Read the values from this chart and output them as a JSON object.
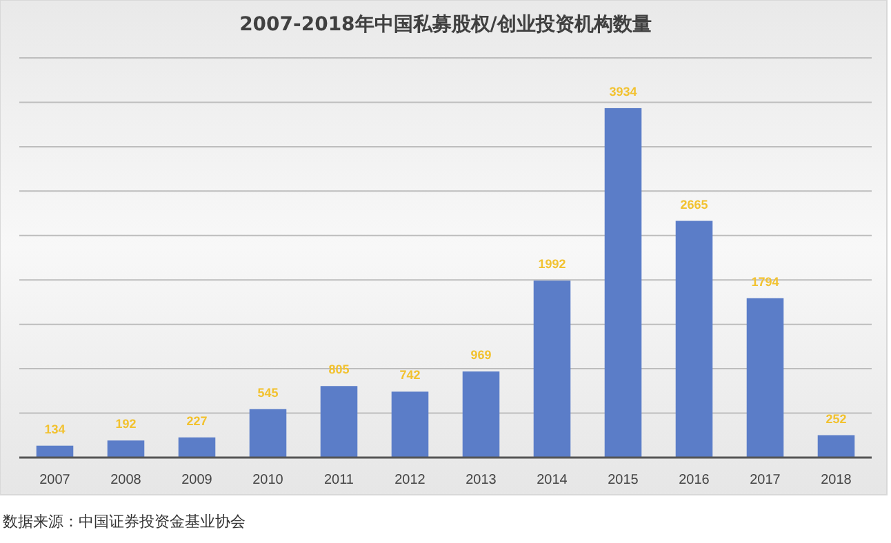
{
  "chart_data": {
    "type": "bar",
    "title": "2007-2018年中国私募股权/创业投资机构数量",
    "categories": [
      "2007",
      "2008",
      "2009",
      "2010",
      "2011",
      "2012",
      "2013",
      "2014",
      "2015",
      "2016",
      "2017",
      "2018"
    ],
    "values": [
      134,
      192,
      227,
      545,
      805,
      742,
      969,
      1992,
      3934,
      2665,
      1794,
      252
    ],
    "color": "#5b7dc8",
    "data_labels": true,
    "ylim": [
      0,
      4500
    ],
    "yticks": [
      {
        "value": 0,
        "label": null
      },
      {
        "value": 500,
        "label": null
      },
      {
        "value": 1000,
        "label": null
      },
      {
        "value": 1500,
        "label": null
      },
      {
        "value": 2000,
        "label": null
      },
      {
        "value": 2500,
        "label": null
      },
      {
        "value": 3000,
        "label": null
      },
      {
        "value": 3500,
        "label": null
      },
      {
        "value": 4000,
        "label": null
      },
      {
        "value": 4500,
        "label": null
      }
    ],
    "grid": "y",
    "tick_labels": "x",
    "annotations": [
      "数据来源：中国证券投资金基业协会"
    ]
  }
}
